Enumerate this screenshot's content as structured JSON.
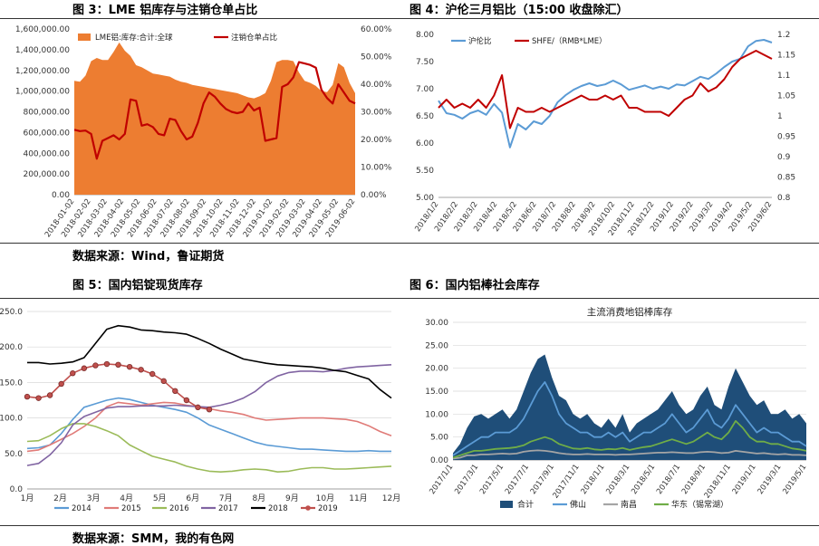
{
  "figures": {
    "fig3_title": "图 3：LME 铝库存与注销仓单占比",
    "fig4_title": "图 4：沪伦三月铝比（15:00 收盘除汇）",
    "fig5_title": "图 5：国内铝锭现货库存",
    "fig6_title": "图 6：国内铝棒社会库存",
    "source_top": "数据来源：Wind，鲁证期货",
    "source_bottom": "数据来源：SMM，我的有色网"
  },
  "chart_data": [
    {
      "id": "fig3",
      "type": "area",
      "legend_position": "top",
      "x_ticks": [
        "2018-01-02",
        "2018-02-02",
        "2018-03-02",
        "2018-04-02",
        "2018-05-02",
        "2018-06-02",
        "2018-07-02",
        "2018-08-02",
        "2018-09-02",
        "2018-10-02",
        "2018-11-02",
        "2018-12-02",
        "2019-01-02",
        "2019-02-02",
        "2019-03-02",
        "2019-04-02",
        "2019-05-02",
        "2019-06-02"
      ],
      "y_left_ticks": [
        "0.00",
        "200,000.00",
        "400,000.00",
        "600,000.00",
        "800,000.00",
        "1,000,000.00",
        "1,200,000.00",
        "1,400,000.00",
        "1,600,000.00"
      ],
      "y_left_range": [
        0,
        1600000
      ],
      "y_right_ticks": [
        "0.00%",
        "10.00%",
        "20.00%",
        "30.00%",
        "40.00%",
        "50.00%",
        "60.00%"
      ],
      "y_right_range": [
        0,
        60
      ],
      "colors": {
        "area": "#ED7D31",
        "line": "#C00000"
      },
      "series": [
        {
          "name": "LME铝:库存:合计:全球",
          "axis": "left",
          "kind": "area",
          "values": [
            1100000,
            1090000,
            1150000,
            1290000,
            1320000,
            1300000,
            1300000,
            1380000,
            1470000,
            1390000,
            1340000,
            1250000,
            1230000,
            1200000,
            1170000,
            1160000,
            1150000,
            1140000,
            1110000,
            1090000,
            1080000,
            1060000,
            1050000,
            1040000,
            1030000,
            1020000,
            1010000,
            1000000,
            990000,
            980000,
            960000,
            940000,
            930000,
            950000,
            980000,
            1100000,
            1280000,
            1300000,
            1300000,
            1290000,
            1180000,
            1100000,
            1080000,
            1050000,
            1000000,
            990000,
            1060000,
            1270000,
            1230000,
            1080000,
            980000
          ]
        },
        {
          "name": "注销仓单占比",
          "axis": "right",
          "kind": "line",
          "values": [
            23.5,
            23.0,
            23.2,
            22.0,
            13.0,
            19.5,
            20.5,
            21.5,
            20.0,
            22.0,
            34.5,
            34.0,
            25.0,
            25.5,
            24.5,
            22.0,
            21.5,
            27.5,
            27.0,
            23.0,
            20.0,
            21.0,
            26.0,
            33.0,
            37.0,
            35.5,
            33.0,
            31.0,
            30.0,
            29.5,
            30.0,
            33.0,
            30.5,
            31.5,
            19.5,
            20.0,
            20.5,
            39.0,
            40.0,
            42.5,
            48.0,
            47.5,
            47.0,
            46.0,
            38.0,
            35.0,
            33.0,
            40.0,
            37.0,
            34.0,
            33.0
          ]
        }
      ]
    },
    {
      "id": "fig4",
      "type": "line",
      "legend_position": "top-left",
      "x_ticks": [
        "2018/1/2",
        "2018/2/2",
        "2018/3/2",
        "2018/4/2",
        "2018/5/2",
        "2018/6/2",
        "2018/7/2",
        "2018/8/2",
        "2018/9/2",
        "2018/10/2",
        "2018/11/2",
        "2018/12/2",
        "2019/1/2",
        "2019/2/2",
        "2019/3/2",
        "2019/4/2",
        "2019/5/2",
        "2019/6/2"
      ],
      "y_left_ticks": [
        "5.00",
        "5.50",
        "6.00",
        "6.50",
        "7.00",
        "7.50",
        "8.00"
      ],
      "y_left_range": [
        5.0,
        8.0
      ],
      "y_right_ticks": [
        "0.8",
        "0.85",
        "0.9",
        "0.95",
        "1",
        "1.05",
        "1.1",
        "1.15",
        "1.2"
      ],
      "y_right_range": [
        0.8,
        1.2
      ],
      "colors": {
        "ratio": "#5B9BD5",
        "shfe": "#C00000"
      },
      "series": [
        {
          "name": "沪伦比",
          "axis": "left",
          "values": [
            6.78,
            6.55,
            6.52,
            6.45,
            6.55,
            6.6,
            6.52,
            6.72,
            6.56,
            5.92,
            6.35,
            6.25,
            6.4,
            6.35,
            6.5,
            6.75,
            6.88,
            6.98,
            7.05,
            7.1,
            7.05,
            7.08,
            7.15,
            7.08,
            6.98,
            7.02,
            7.06,
            7.0,
            7.04,
            7.0,
            7.08,
            7.06,
            7.14,
            7.22,
            7.18,
            7.28,
            7.4,
            7.5,
            7.55,
            7.78,
            7.88,
            7.9,
            7.85
          ]
        },
        {
          "name": "SHFE/（RMB*LME）",
          "axis": "right",
          "values": [
            1.02,
            1.04,
            1.02,
            1.03,
            1.02,
            1.04,
            1.02,
            1.05,
            1.1,
            0.97,
            1.02,
            1.01,
            1.01,
            1.02,
            1.01,
            1.02,
            1.03,
            1.04,
            1.05,
            1.04,
            1.04,
            1.05,
            1.04,
            1.05,
            1.02,
            1.02,
            1.01,
            1.01,
            1.01,
            1.0,
            1.02,
            1.04,
            1.05,
            1.08,
            1.06,
            1.07,
            1.09,
            1.12,
            1.14,
            1.15,
            1.16,
            1.15,
            1.14
          ]
        }
      ]
    },
    {
      "id": "fig5",
      "type": "line",
      "legend_position": "bottom",
      "x_ticks": [
        "1月",
        "2月",
        "3月",
        "4月",
        "5月",
        "6月",
        "7月",
        "8月",
        "9月",
        "10月",
        "11月",
        "12月"
      ],
      "y_left_ticks": [
        "0.0",
        "50.0",
        "100.0",
        "150.0",
        "200.0",
        "250.0"
      ],
      "y_left_range": [
        0,
        250
      ],
      "series": [
        {
          "name": "2014",
          "color": "#5B9BD5",
          "values": [
            57,
            58,
            62,
            78,
            98,
            115,
            120,
            125,
            128,
            126,
            122,
            118,
            115,
            112,
            108,
            100,
            90,
            84,
            78,
            72,
            66,
            62,
            60,
            58,
            56,
            56,
            55,
            54,
            53,
            53,
            54,
            53,
            53
          ]
        },
        {
          "name": "2015",
          "color": "#E07B78",
          "values": [
            53,
            55,
            62,
            70,
            78,
            88,
            100,
            116,
            122,
            120,
            118,
            120,
            122,
            121,
            118,
            116,
            113,
            110,
            108,
            105,
            100,
            97,
            98,
            99,
            100,
            100,
            100,
            99,
            98,
            95,
            89,
            81,
            75
          ]
        },
        {
          "name": "2016",
          "color": "#9BBB59",
          "values": [
            67,
            68,
            75,
            85,
            92,
            92,
            88,
            82,
            75,
            62,
            54,
            46,
            42,
            38,
            32,
            28,
            25,
            24,
            25,
            27,
            28,
            27,
            24,
            25,
            28,
            30,
            30,
            28,
            28,
            29,
            30,
            31,
            32
          ]
        },
        {
          "name": "2017",
          "color": "#8064A2",
          "values": [
            33,
            36,
            48,
            65,
            90,
            102,
            108,
            114,
            116,
            116,
            117,
            117,
            117,
            118,
            117,
            116,
            115,
            118,
            122,
            128,
            137,
            150,
            159,
            164,
            166,
            166,
            165,
            167,
            170,
            172,
            173,
            174,
            175
          ]
        },
        {
          "name": "2018",
          "color": "#000000",
          "values": [
            178,
            178,
            176,
            177,
            179,
            185,
            205,
            225,
            230,
            228,
            224,
            223,
            221,
            220,
            218,
            212,
            205,
            197,
            190,
            183,
            180,
            177,
            175,
            174,
            173,
            172,
            170,
            167,
            165,
            160,
            155,
            140,
            128
          ]
        },
        {
          "name": "2019",
          "color": "#C0504D",
          "values": [
            130,
            128,
            132,
            148,
            163,
            170,
            174,
            176,
            175,
            172,
            168,
            162,
            152,
            138,
            125,
            115,
            112
          ]
        }
      ]
    },
    {
      "id": "fig6",
      "type": "area",
      "title": "主流消费地铝棒库存",
      "legend_position": "bottom",
      "x_ticks": [
        "2017/1/1",
        "2017/3/1",
        "2017/5/1",
        "2017/7/1",
        "2017/9/1",
        "2017/11/1",
        "2018/1/1",
        "2018/3/1",
        "2018/5/1",
        "2018/7/1",
        "2018/9/1",
        "2018/11/1",
        "2019/1/1",
        "2019/3/1",
        "2019/5/1"
      ],
      "y_left_ticks": [
        "0.00",
        "5.00",
        "10.00",
        "15.00",
        "20.00",
        "25.00",
        "30.00"
      ],
      "y_left_range": [
        0,
        30
      ],
      "series": [
        {
          "name": "合计",
          "color": "#1F4E79",
          "kind": "area",
          "values": [
            1.5,
            3.5,
            7,
            9.5,
            10,
            9,
            10,
            11,
            9,
            11,
            15,
            19,
            22,
            23,
            18,
            14,
            13,
            10,
            9,
            10,
            8,
            7,
            9,
            7,
            10,
            6,
            8,
            9,
            10,
            11,
            13,
            15,
            12,
            10,
            11,
            14,
            16,
            12,
            11,
            16,
            20,
            17,
            14,
            12,
            13,
            10,
            10,
            11,
            9,
            10,
            8
          ]
        },
        {
          "name": "佛山",
          "color": "#5B9BD5",
          "kind": "line",
          "values": [
            1,
            2,
            3,
            4,
            5,
            5,
            6,
            6,
            6,
            7,
            9,
            12,
            15,
            17,
            14,
            10,
            8,
            7,
            6,
            6,
            5,
            5,
            6,
            5,
            6,
            4,
            5,
            6,
            6,
            7,
            8,
            10,
            8,
            6,
            7,
            9,
            11,
            8,
            7,
            9,
            12,
            10,
            8,
            6,
            7,
            6,
            6,
            5,
            4,
            4,
            3
          ]
        },
        {
          "name": "南昌",
          "color": "#A5A5A5",
          "kind": "line",
          "values": [
            0.3,
            0.5,
            1,
            1,
            1.2,
            1.2,
            1.3,
            1.4,
            1.3,
            1.4,
            1.8,
            2.0,
            2.1,
            2.0,
            1.8,
            1.5,
            1.3,
            1.2,
            1.2,
            1.3,
            1.2,
            1.2,
            1.2,
            1.1,
            1.2,
            1.2,
            1.3,
            1.4,
            1.5,
            1.6,
            1.6,
            1.7,
            1.6,
            1.5,
            1.5,
            1.7,
            1.8,
            1.7,
            1.5,
            1.6,
            2.0,
            1.8,
            1.6,
            1.4,
            1.5,
            1.3,
            1.2,
            1.3,
            1.1,
            1.1,
            1.0
          ]
        },
        {
          "name": "华东（锡常湖）",
          "color": "#70AD47",
          "kind": "line",
          "values": [
            0.5,
            1,
            1.5,
            2,
            2,
            2.2,
            2.4,
            2.5,
            2.6,
            2.8,
            3.2,
            4,
            4.5,
            5,
            4.5,
            3.5,
            3,
            2.5,
            2.4,
            2.6,
            2.3,
            2.2,
            2.4,
            2.3,
            2.6,
            2.2,
            2.5,
            2.8,
            3,
            3.5,
            4,
            4.5,
            4,
            3.5,
            4,
            5,
            6,
            5,
            4.5,
            6,
            8.5,
            7,
            5,
            4,
            4,
            3.5,
            3.5,
            3,
            2.5,
            2.3,
            2
          ]
        }
      ]
    }
  ]
}
